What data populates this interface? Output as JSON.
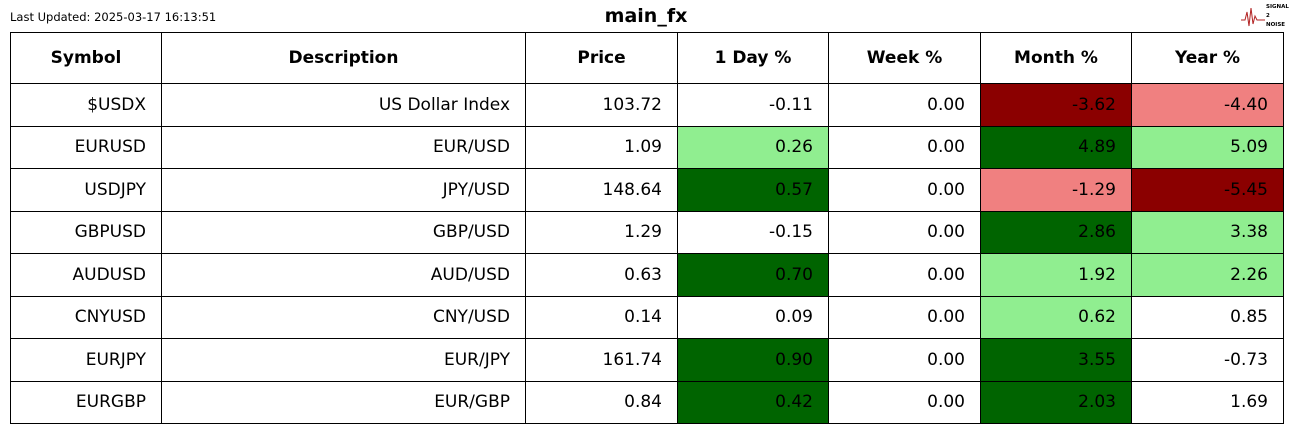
{
  "header": {
    "last_updated": "Last Updated: 2025-03-17 16:13:51",
    "title": "main_fx",
    "logo": [
      "SIGNAL",
      "2",
      "NOISE"
    ]
  },
  "table": {
    "columns": [
      "Symbol",
      "Description",
      "Price",
      "1 Day %",
      "Week %",
      "Month %",
      "Year %"
    ],
    "rows": [
      [
        "$USDX",
        "US Dollar Index",
        "103.72",
        "-0.11",
        "0.00",
        "-3.62",
        "-4.40"
      ],
      [
        "EURUSD",
        "EUR/USD",
        "1.09",
        "0.26",
        "0.00",
        "4.89",
        "5.09"
      ],
      [
        "USDJPY",
        "JPY/USD",
        "148.64",
        "0.57",
        "0.00",
        "-1.29",
        "-5.45"
      ],
      [
        "GBPUSD",
        "GBP/USD",
        "1.29",
        "-0.15",
        "0.00",
        "2.86",
        "3.38"
      ],
      [
        "AUDUSD",
        "AUD/USD",
        "0.63",
        "0.70",
        "0.00",
        "1.92",
        "2.26"
      ],
      [
        "CNYUSD",
        "CNY/USD",
        "0.14",
        "0.09",
        "0.00",
        "0.62",
        "0.85"
      ],
      [
        "EURJPY",
        "EUR/JPY",
        "161.74",
        "0.90",
        "0.00",
        "3.55",
        "-0.73"
      ],
      [
        "EURGBP",
        "EUR/GBP",
        "0.84",
        "0.42",
        "0.00",
        "2.03",
        "1.69"
      ]
    ],
    "fills": [
      [
        "#ffffff",
        "#ffffff",
        "#ffffff",
        "#ffffff",
        "#ffffff",
        "#8b0000",
        "#f08080"
      ],
      [
        "#ffffff",
        "#ffffff",
        "#ffffff",
        "#90ee90",
        "#ffffff",
        "#006400",
        "#90ee90"
      ],
      [
        "#ffffff",
        "#ffffff",
        "#ffffff",
        "#006400",
        "#ffffff",
        "#f08080",
        "#8b0000"
      ],
      [
        "#ffffff",
        "#ffffff",
        "#ffffff",
        "#ffffff",
        "#ffffff",
        "#006400",
        "#90ee90"
      ],
      [
        "#ffffff",
        "#ffffff",
        "#ffffff",
        "#006400",
        "#ffffff",
        "#90ee90",
        "#90ee90"
      ],
      [
        "#ffffff",
        "#ffffff",
        "#ffffff",
        "#ffffff",
        "#ffffff",
        "#90ee90",
        "#ffffff"
      ],
      [
        "#ffffff",
        "#ffffff",
        "#ffffff",
        "#006400",
        "#ffffff",
        "#006400",
        "#ffffff"
      ],
      [
        "#ffffff",
        "#ffffff",
        "#ffffff",
        "#006400",
        "#ffffff",
        "#006400",
        "#ffffff"
      ]
    ]
  }
}
